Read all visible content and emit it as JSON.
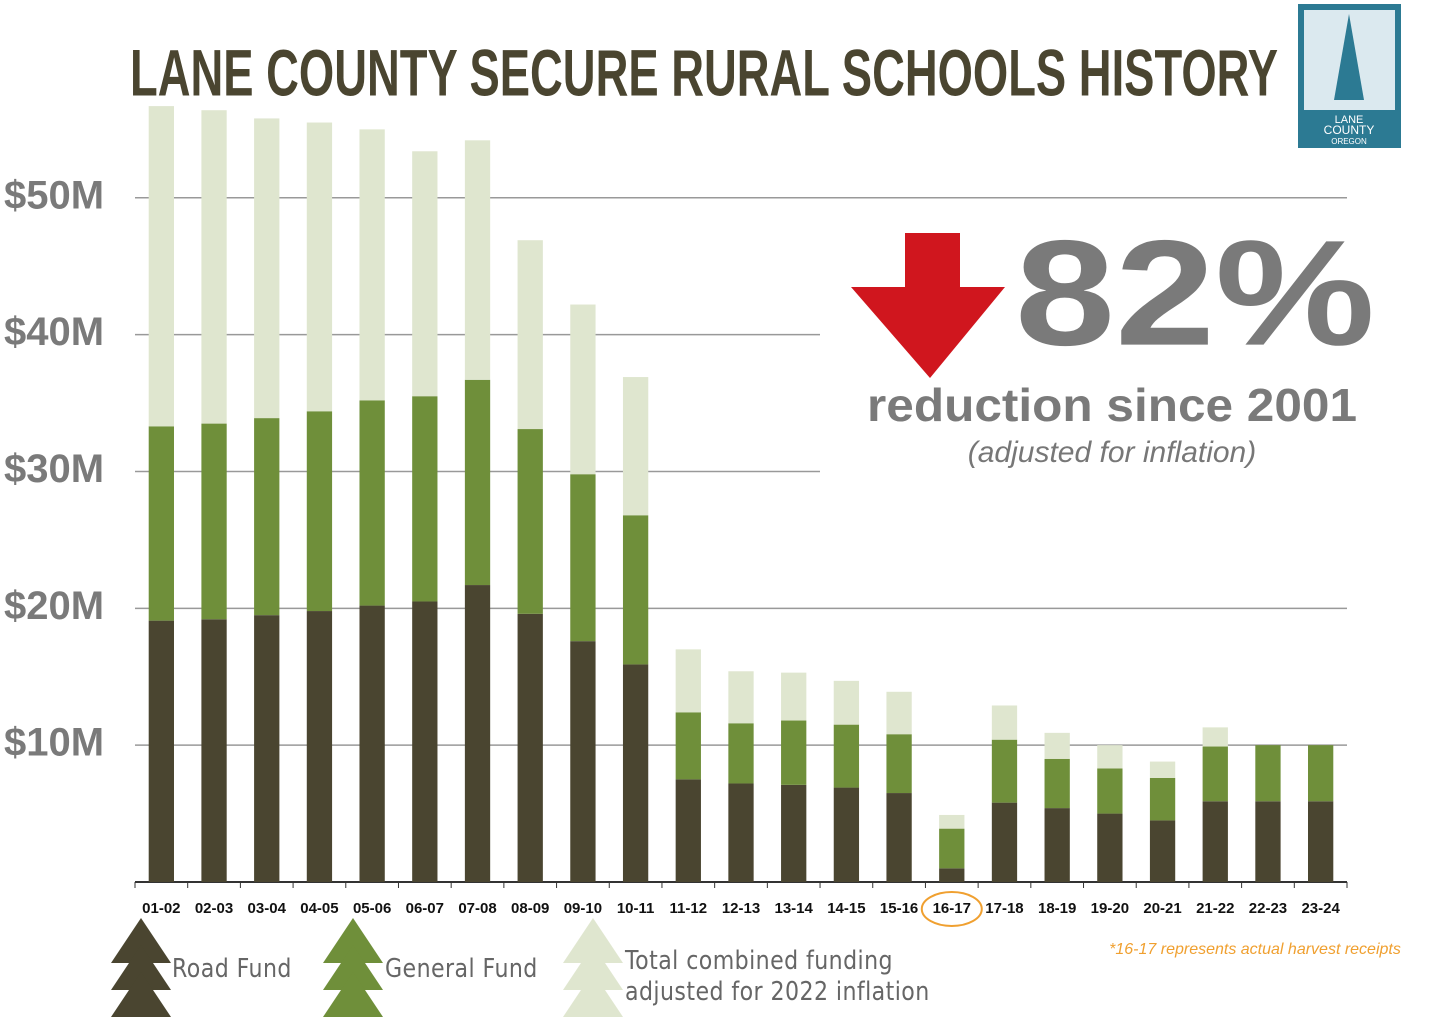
{
  "chart_data": {
    "type": "stacked_bar",
    "title": "LANE COUNTY SECURE RURAL SCHOOLS HISTORY",
    "categories": [
      "01-02",
      "02-03",
      "03-04",
      "04-05",
      "05-06",
      "06-07",
      "07-08",
      "08-09",
      "09-10",
      "10-11",
      "11-12",
      "12-13",
      "13-14",
      "14-15",
      "15-16",
      "16-17",
      "17-18",
      "18-19",
      "19-20",
      "20-21",
      "21-22",
      "22-23",
      "23-24"
    ],
    "series": [
      {
        "name": "Road Fund",
        "color": "#4a4530",
        "values": [
          19.1,
          19.2,
          19.5,
          19.8,
          20.2,
          20.5,
          21.7,
          19.6,
          17.6,
          15.9,
          7.5,
          7.2,
          7.1,
          6.9,
          6.5,
          1.0,
          5.8,
          5.4,
          5.0,
          4.5,
          5.9,
          5.9,
          5.9
        ]
      },
      {
        "name": "General Fund",
        "color": "#6f8f3a",
        "values": [
          14.2,
          14.3,
          14.4,
          14.6,
          15.0,
          15.0,
          15.0,
          13.5,
          12.2,
          10.9,
          4.9,
          4.4,
          4.7,
          4.6,
          4.3,
          2.9,
          4.6,
          3.6,
          3.3,
          3.1,
          4.0,
          4.1,
          4.1
        ]
      },
      {
        "name": "Total combined funding adjusted for 2022 inflation",
        "color": "#dfe6cf",
        "values": [
          23.4,
          22.9,
          21.9,
          21.1,
          19.8,
          17.9,
          17.5,
          13.8,
          12.4,
          10.1,
          4.6,
          3.8,
          3.5,
          3.2,
          3.1,
          1.0,
          2.5,
          1.9,
          1.7,
          1.2,
          1.4,
          0,
          0
        ]
      }
    ],
    "ylim": [
      0,
      57
    ],
    "yticks": [
      {
        "value": 10,
        "label": "$10M"
      },
      {
        "value": 20,
        "label": "$20M"
      },
      {
        "value": 30,
        "label": "$30M"
      },
      {
        "value": 40,
        "label": "$40M"
      },
      {
        "value": 50,
        "label": "$50M"
      }
    ],
    "grid": true,
    "callout_value": "82%",
    "callout_text": "reduction since 2001",
    "callout_note": "(adjusted for inflation)",
    "footnote": "*16-17 represents actual harvest receipts",
    "logo": [
      "LANE",
      "COUNTY",
      "OREGON"
    ]
  }
}
